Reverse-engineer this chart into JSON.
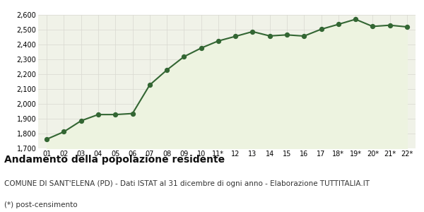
{
  "x_labels": [
    "01",
    "02",
    "03",
    "04",
    "05",
    "06",
    "07",
    "08",
    "09",
    "10",
    "11*",
    "12",
    "13",
    "14",
    "15",
    "16",
    "17",
    "18*",
    "19*",
    "20*",
    "21*",
    "22*"
  ],
  "y_values": [
    1762,
    1812,
    1886,
    1928,
    1928,
    1935,
    2127,
    2228,
    2318,
    2376,
    2424,
    2455,
    2487,
    2458,
    2465,
    2457,
    2503,
    2536,
    2570,
    2522,
    2530,
    2519
  ],
  "line_color": "#336633",
  "fill_color": "#edf3e0",
  "marker_color": "#336633",
  "plot_bg_color": "#f0f2e8",
  "grid_color": "#d8d8d0",
  "ylim": [
    1700,
    2600
  ],
  "yticks": [
    1700,
    1800,
    1900,
    2000,
    2100,
    2200,
    2300,
    2400,
    2500,
    2600
  ],
  "title": "Andamento della popolazione residente",
  "subtitle": "COMUNE DI SANT'ELENA (PD) - Dati ISTAT al 31 dicembre di ogni anno - Elaborazione TUTTITALIA.IT",
  "footnote": "(*) post-censimento",
  "title_fontsize": 10,
  "subtitle_fontsize": 7.5,
  "footnote_fontsize": 7.5,
  "tick_fontsize": 7,
  "line_width": 1.5,
  "marker_size": 18
}
